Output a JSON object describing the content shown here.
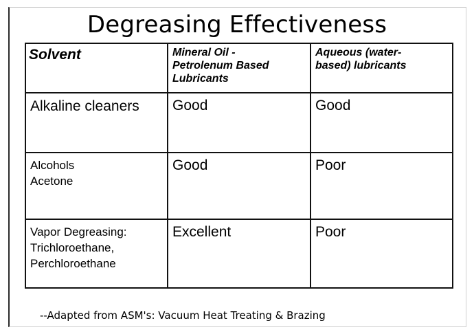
{
  "title": "Degreasing Effectiveness",
  "table": {
    "headers": {
      "solvent": "Solvent",
      "col1": [
        "Mineral Oil -",
        "Petrolenum Based",
        "Lubricants"
      ],
      "col2": [
        "Aqueous (water-",
        "based) lubricants"
      ]
    },
    "rows": [
      {
        "solvent": [
          "Alkaline cleaners"
        ],
        "col1": "Good",
        "col2": "Good"
      },
      {
        "solvent": [
          "Alcohols",
          "Acetone"
        ],
        "col1": "Good",
        "col2": "Poor"
      },
      {
        "solvent": [
          "Vapor Degreasing:",
          "Trichloroethane,",
          "Perchloroethane"
        ],
        "col1": "Excellent",
        "col2": "Poor"
      }
    ]
  },
  "footer": "--Adapted from ASM's: Vacuum Heat Treating & Brazing"
}
